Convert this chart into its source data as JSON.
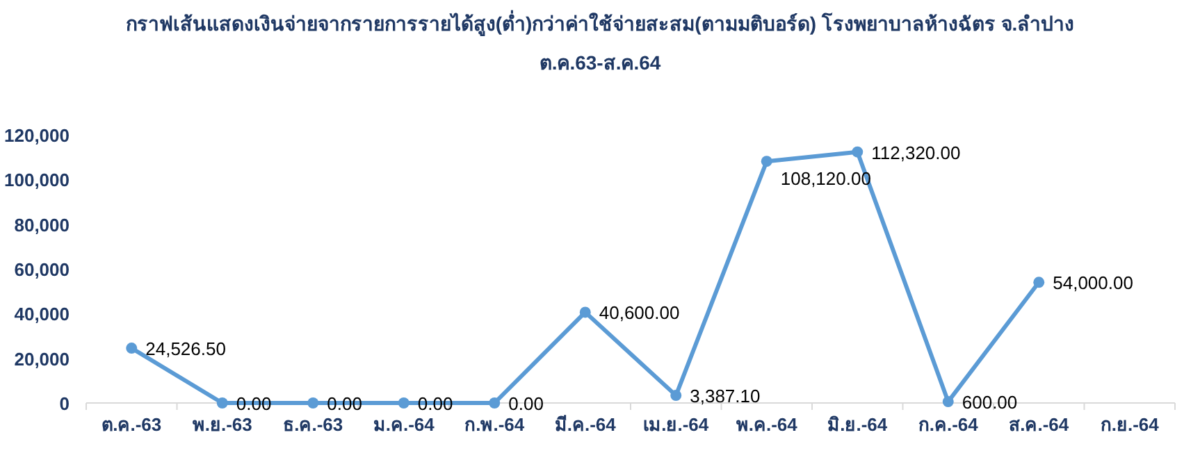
{
  "chart_data": {
    "type": "line",
    "title": "กราฟเส้นแสดงเงินจ่ายจากรายการรายได้สูง(ต่ำ)กว่าค่าใช้จ่ายสะสม(ตามมติบอร์ด) โรงพยาบาลห้างฉัตร จ.ลำปาง",
    "subtitle": "ต.ค.63-ส.ค.64",
    "categories": [
      "ต.ค.-63",
      "พ.ย.-63",
      "ธ.ค.-63",
      "ม.ค.-64",
      "ก.พ.-64",
      "มี.ค.-64",
      "เม.ย.-64",
      "พ.ค.-64",
      "มิ.ย.-64",
      "ก.ค.-64",
      "ส.ค.-64",
      "ก.ย.-64"
    ],
    "values": [
      24526.5,
      0,
      0,
      0,
      0,
      40600,
      3387.1,
      108120,
      112320,
      600,
      54000,
      null
    ],
    "value_labels": [
      "24,526.50",
      "0.00",
      "0.00",
      "0.00",
      "0.00",
      "40,600.00",
      "3,387.10",
      "108,120.00",
      "112,320.00",
      "600.00",
      "54,000.00",
      null
    ],
    "color": "#5b9bd5",
    "marker": "circle",
    "line_style": "solid",
    "ylim": [
      0,
      120000
    ],
    "yticks": [
      0,
      {
        "value": 20000,
        "label": "20,000"
      },
      {
        "value": 40000,
        "label": "40,000"
      },
      {
        "value": 60000,
        "label": "60,000"
      },
      {
        "value": 80000,
        "label": "80,000"
      },
      {
        "value": 100000,
        "label": "100,000"
      },
      {
        "value": 120000,
        "label": "120,000"
      }
    ]
  }
}
